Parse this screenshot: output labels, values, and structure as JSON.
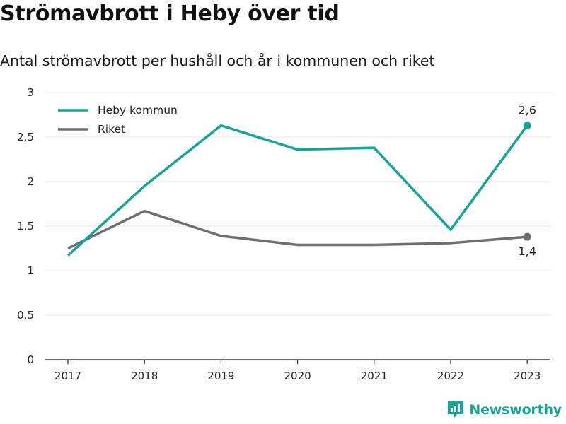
{
  "title": "Strömavbrott i Heby över tid",
  "subtitle": "Antal strömavbrott per hushåll och år i kommunen och riket",
  "brand": {
    "name": "Newsworthy",
    "icon": "newsworthy-logo-icon",
    "color": "#17a398"
  },
  "chart_data": {
    "type": "line",
    "categories": [
      "2017",
      "2018",
      "2019",
      "2020",
      "2021",
      "2022",
      "2023"
    ],
    "y_ticks": [
      0,
      0.5,
      1,
      1.5,
      2,
      2.5,
      3
    ],
    "y_tick_labels": [
      "0",
      "0,5",
      "1",
      "1,5",
      "2",
      "2,5",
      "3"
    ],
    "ylim": [
      0,
      3
    ],
    "grid": "horizontal",
    "legend_position": "top-left",
    "series": [
      {
        "name": "Heby kommun",
        "color": "#17a398",
        "values": [
          1.17,
          1.95,
          2.63,
          2.36,
          2.38,
          1.46,
          2.63
        ],
        "end_label": "2,6"
      },
      {
        "name": "Riket",
        "color": "#6e6c74",
        "values": [
          1.25,
          1.67,
          1.39,
          1.29,
          1.29,
          1.31,
          1.38
        ],
        "end_label": "1,4"
      }
    ]
  }
}
